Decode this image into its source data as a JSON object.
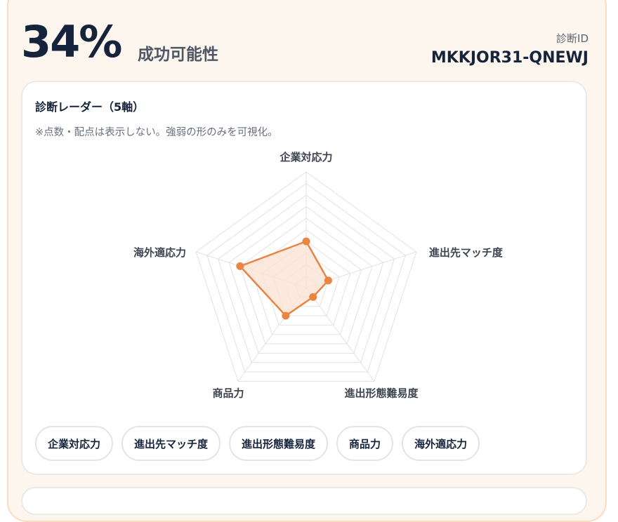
{
  "header": {
    "success_rate": "34%",
    "success_label": "成功可能性",
    "diagnosis_id_label": "診断ID",
    "diagnosis_id": "MKKJOR31-QNEWJ"
  },
  "radar_card": {
    "title": "診断レーダー（5軸）",
    "note": "※点数・配点は表示しない。強弱の形のみを可視化。"
  },
  "chart_data": {
    "type": "radar",
    "axes": [
      "企業対応力",
      "進出先マッチ度",
      "進出形態難易度",
      "商品力",
      "海外適応力"
    ],
    "values": [
      4,
      2,
      1,
      3,
      6
    ],
    "range": [
      0,
      10
    ],
    "grid_levels": 10,
    "tick_labels_shown": false,
    "colors": {
      "line": "#ea8443",
      "fill": "#fbe3d4",
      "grid": "#e2e2e2"
    }
  },
  "chips": [
    "企業対応力",
    "進出先マッチ度",
    "進出形態難易度",
    "商品力",
    "海外適応力"
  ]
}
